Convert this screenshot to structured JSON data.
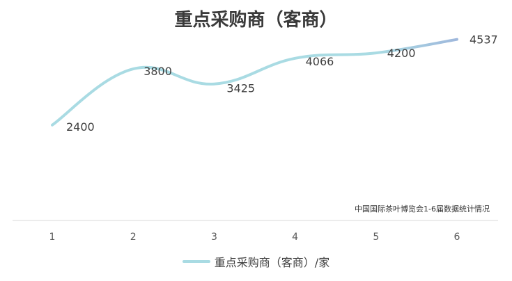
{
  "chart_data": {
    "type": "line",
    "title": "重点采购商（客商）",
    "categories": [
      "1",
      "2",
      "3",
      "4",
      "5",
      "6"
    ],
    "series": [
      {
        "name": "重点采购商（客商）/家",
        "values": [
          2400,
          3800,
          3425,
          4066,
          4200,
          4537
        ]
      }
    ],
    "data_labels": [
      "2400",
      "3800",
      "3425",
      "4066",
      "4200",
      "4537"
    ],
    "annotation": "中国国际茶叶博览会1-6届数据统计情况",
    "smooth": true,
    "grid": false,
    "legend_position": "bottom",
    "line_color_start": "#a9dbe3",
    "line_color_end": "#9fb8dc"
  }
}
